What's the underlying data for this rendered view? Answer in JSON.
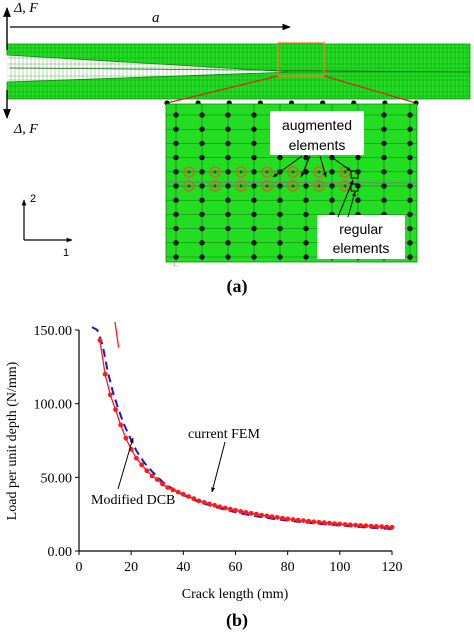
{
  "panel_a": {
    "load_label_top": "Δ, F",
    "load_label_bottom": "Δ, F",
    "crack_length_label": "a",
    "callout_augmented": "augmented elements",
    "callout_augmented_line1": "augmented",
    "callout_augmented_line2": "elements",
    "callout_regular": "regular elements",
    "callout_regular_line1": "regular",
    "callout_regular_line2": "elements",
    "axis_2": "2",
    "axis_1": "1",
    "caption": "(a)",
    "colors": {
      "mesh_green": "#22dd22",
      "zoom_box": "#ff7722",
      "zoom_line": "#e02020",
      "node": "#111111",
      "augmented_ring": "#b07828"
    }
  },
  "panel_b": {
    "caption": "(b)",
    "annotation_current_fem": "current FEM",
    "annotation_modified_dcb": "Modified DCB"
  },
  "chart_data": {
    "type": "line",
    "xlabel": "Crack length (mm)",
    "ylabel": "Load per unit depth (N/mm)",
    "xlim": [
      0,
      120
    ],
    "ylim": [
      0,
      150
    ],
    "xticks": [
      "0",
      "20",
      "40",
      "60",
      "80",
      "100",
      "120"
    ],
    "yticks": [
      "0.00",
      "50.00",
      "100.00",
      "150.00"
    ],
    "grid": false,
    "series": [
      {
        "name": "current FEM",
        "color": "#ff1a1a",
        "style": "solid line with circle markers",
        "x": [
          8,
          10,
          12,
          14,
          16,
          18,
          20,
          22,
          24,
          26,
          28,
          30,
          32,
          34,
          36,
          38,
          40,
          42,
          44,
          46,
          48,
          50,
          52,
          54,
          56,
          58,
          60,
          62,
          64,
          66,
          68,
          70,
          72,
          74,
          76,
          78,
          80,
          82,
          84,
          86,
          88,
          90,
          92,
          94,
          96,
          98,
          100,
          102,
          104,
          106,
          108,
          110,
          112,
          114,
          116,
          118,
          120
        ],
        "y": [
          143.0,
          120.0,
          106.0,
          96.0,
          85.5,
          76.5,
          69.0,
          63.0,
          58.5,
          54.5,
          51.0,
          48.5,
          45.5,
          43.0,
          41.5,
          40.0,
          38.5,
          37.0,
          35.5,
          34.0,
          33.0,
          32.0,
          31.0,
          30.0,
          29.2,
          28.4,
          27.6,
          26.9,
          26.2,
          25.6,
          25.0,
          24.4,
          23.8,
          23.3,
          22.8,
          22.3,
          21.8,
          21.4,
          21.0,
          20.6,
          20.2,
          19.8,
          19.5,
          19.2,
          18.9,
          18.6,
          18.3,
          18.0,
          17.8,
          17.5,
          17.3,
          17.1,
          16.9,
          16.7,
          16.5,
          16.3,
          16.1
        ]
      },
      {
        "name": "Modified DCB",
        "color": "#1a1acc",
        "style": "dashed line",
        "x": [
          5,
          7,
          9,
          11,
          13,
          15,
          17,
          19,
          22,
          25,
          28,
          32,
          36,
          40,
          45,
          50,
          55,
          60,
          65,
          70,
          75,
          80,
          85,
          90,
          95,
          100,
          105,
          110,
          115,
          120
        ],
        "y": [
          152.0,
          150.0,
          140.0,
          122.0,
          108.0,
          97.0,
          87.0,
          79.0,
          68.0,
          60.0,
          54.0,
          47.0,
          42.0,
          38.0,
          34.0,
          31.0,
          28.5,
          26.3,
          24.5,
          23.0,
          21.7,
          20.6,
          19.6,
          18.8,
          18.0,
          17.3,
          16.6,
          16.0,
          15.4,
          14.9
        ]
      }
    ]
  }
}
